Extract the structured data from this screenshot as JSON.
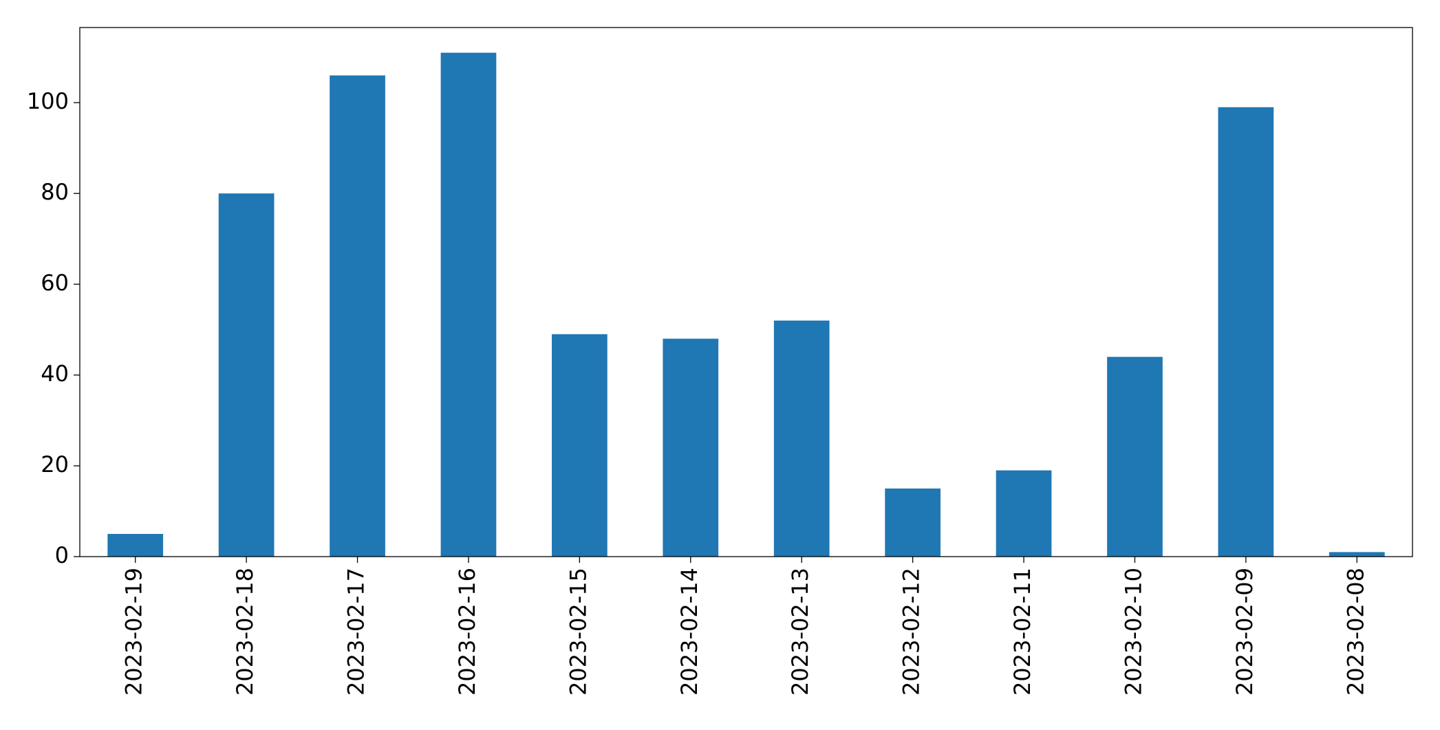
{
  "chart_data": {
    "type": "bar",
    "categories": [
      "2023-02-19",
      "2023-02-18",
      "2023-02-17",
      "2023-02-16",
      "2023-02-15",
      "2023-02-14",
      "2023-02-13",
      "2023-02-12",
      "2023-02-11",
      "2023-02-10",
      "2023-02-09",
      "2023-02-08"
    ],
    "values": [
      5,
      80,
      106,
      111,
      49,
      48,
      52,
      15,
      19,
      44,
      99,
      1
    ],
    "color": "#1f77b4",
    "ylim": [
      0,
      116.55
    ],
    "yticks": [
      0,
      20,
      40,
      60,
      80,
      100
    ],
    "grid": false
  }
}
